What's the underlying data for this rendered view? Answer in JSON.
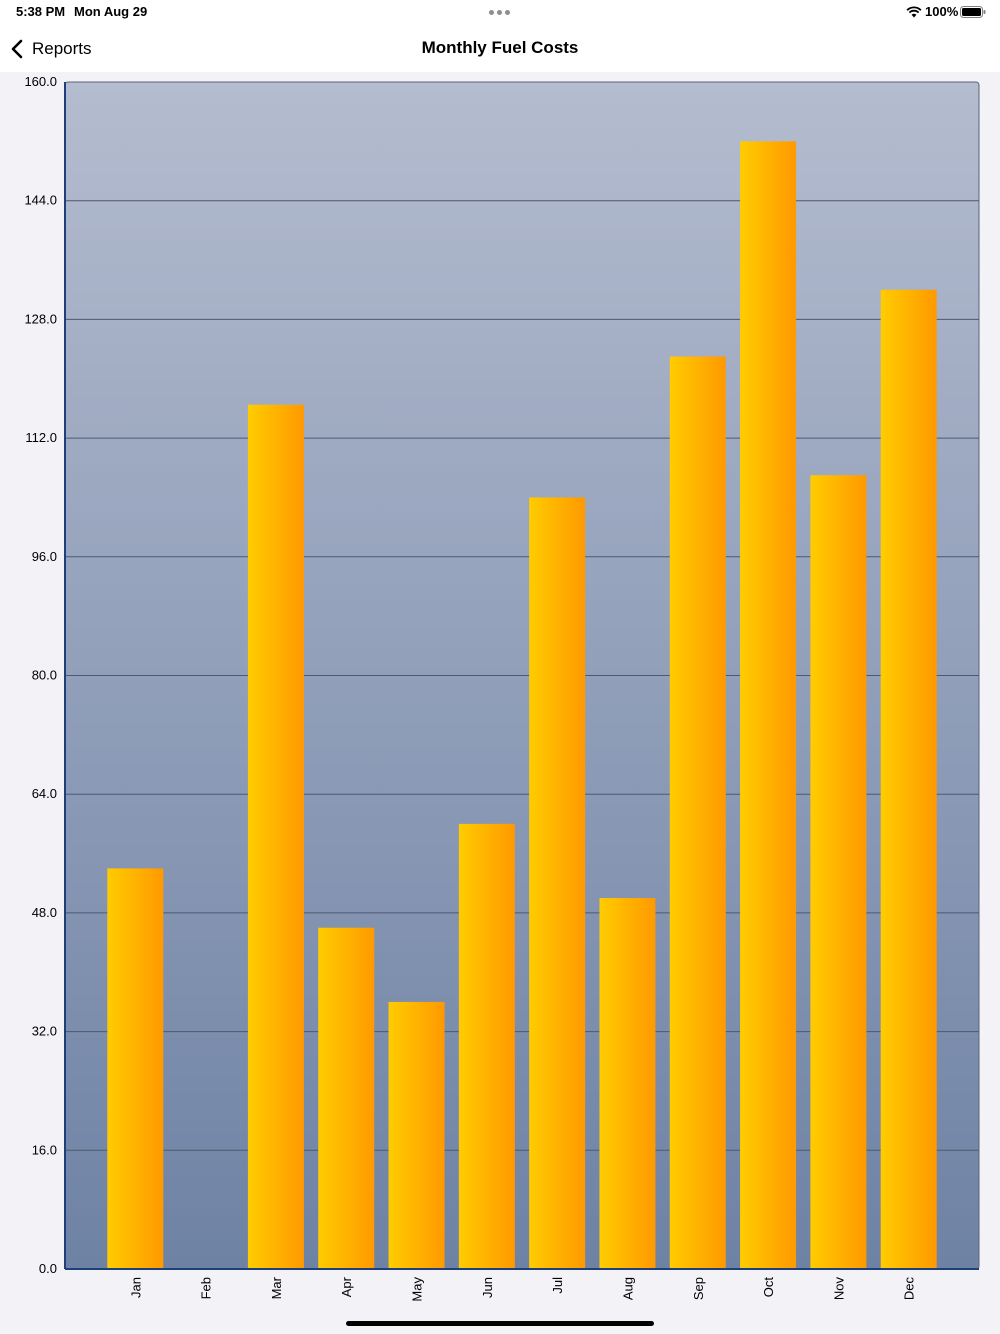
{
  "status_bar": {
    "time": "5:38 PM",
    "date": "Mon Aug 29",
    "battery": "100%"
  },
  "nav": {
    "back_label": "Reports",
    "title": "Monthly Fuel Costs"
  },
  "colors": {
    "plot_top": "#b4bccf",
    "plot_bottom": "#6e82a4",
    "bar_left": "#ffcc00",
    "bar_right": "#ff9900",
    "axis": "#1f3f7a",
    "grid": "#4a5a70"
  },
  "chart_data": {
    "type": "bar",
    "title": "Monthly Fuel Costs",
    "xlabel": "",
    "ylabel": "",
    "categories": [
      "Jan",
      "Feb",
      "Mar",
      "Apr",
      "May",
      "Jun",
      "Jul",
      "Aug",
      "Sep",
      "Oct",
      "Nov",
      "Dec"
    ],
    "values": [
      54.0,
      0,
      116.5,
      46.0,
      36.0,
      60.0,
      104.0,
      50.0,
      123.0,
      152.0,
      107.0,
      132.0
    ],
    "ylim": [
      0,
      160
    ],
    "yticks": [
      "0.0",
      "16.0",
      "32.0",
      "48.0",
      "64.0",
      "80.0",
      "96.0",
      "112.0",
      "128.0",
      "144.0",
      "160.0"
    ],
    "grid": true,
    "legend": "none"
  }
}
